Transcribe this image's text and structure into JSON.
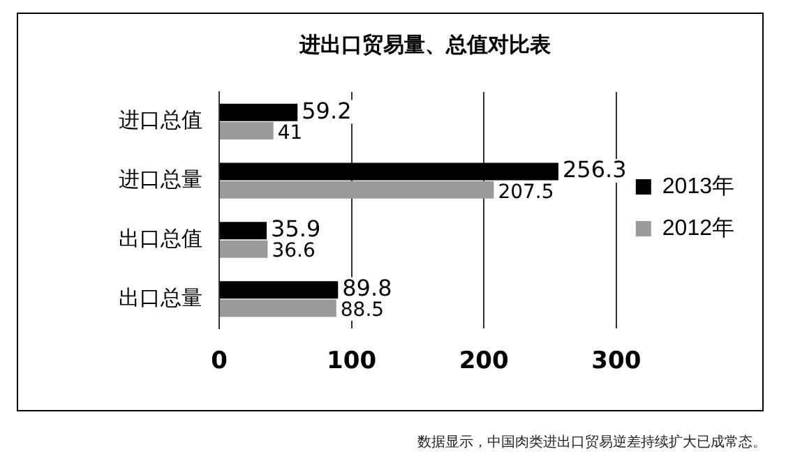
{
  "chart_data": {
    "type": "bar",
    "orientation": "horizontal",
    "title": "进出口贸易量、总值对比表",
    "categories": [
      "进口总值",
      "进口总量",
      "出口总值",
      "出口总量"
    ],
    "series": [
      {
        "name": "2013年",
        "color": "#000000",
        "values": [
          59.2,
          256.3,
          35.9,
          89.8
        ]
      },
      {
        "name": "2012年",
        "color": "#9a9a9a",
        "values": [
          41,
          207.5,
          36.6,
          88.5
        ]
      }
    ],
    "xlim": [
      0,
      300
    ],
    "xticks": [
      0,
      100,
      200,
      300
    ],
    "grid": "x",
    "legend": "right",
    "data_labels": true,
    "annotations": [
      "数据显示，中国肉类进出口贸易逆差持续扩大已成常态。"
    ]
  }
}
